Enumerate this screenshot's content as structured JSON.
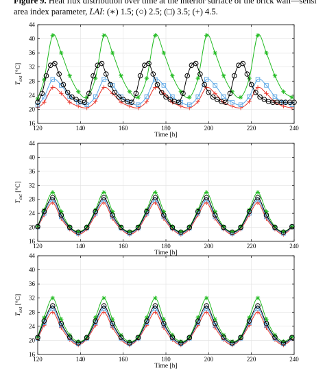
{
  "caption": {
    "figure_label": "Figure 9.",
    "line1_rest": " Heat flux distribution over time at the interior surface of the brick wall—sensi",
    "line2_prefix": "area index parameter, ",
    "line2_param": "LAI",
    "line2_rest": ": (∗) 1.5; (○) 2.5; (□) 3.5; (+) 4.5."
  },
  "colors": {
    "lai_1_5": "#22bb22",
    "lai_2_5": "#000000",
    "lai_3_5": "#5aa6e6",
    "lai_4_5": "#e8352b",
    "grid": "#e2e2e2",
    "axis": "#000000"
  },
  "chart_data": [
    {
      "type": "line",
      "xlabel": "Time [h]",
      "ylabel": "T_ext [°C]",
      "xlim": [
        120,
        240
      ],
      "ylim": [
        16,
        44
      ],
      "xticks": [
        "120",
        "140",
        "160",
        "180",
        "200",
        "220",
        "240"
      ],
      "yticks": [
        "16",
        "20",
        "24",
        "28",
        "32",
        "36",
        "40",
        "44"
      ],
      "grid": true,
      "series": [
        {
          "marker": "asterisk",
          "x": [
            120,
            123,
            127,
            131,
            135,
            139,
            143,
            147,
            151,
            155,
            159,
            163,
            167,
            171,
            175,
            179,
            183,
            187,
            191,
            195,
            199,
            203,
            207,
            211,
            215,
            219,
            223,
            227,
            231,
            235,
            239
          ],
          "values": [
            23.0,
            28.5,
            41.0,
            36.0,
            29.5,
            25.0,
            23.4,
            28.8,
            41.0,
            36.0,
            29.5,
            25.0,
            23.4,
            28.8,
            41.0,
            36.0,
            29.5,
            25.0,
            23.4,
            28.8,
            41.0,
            36.0,
            29.5,
            25.0,
            23.4,
            28.8,
            41.0,
            36.0,
            29.5,
            25.0,
            23.4
          ]
        },
        {
          "marker": "circle",
          "x": [
            120,
            122,
            124,
            126,
            128,
            130,
            132,
            134,
            136,
            138,
            140,
            142,
            144,
            146,
            148,
            150,
            152,
            154,
            156,
            158,
            160,
            162,
            164,
            166,
            168,
            170,
            172,
            174,
            176,
            178,
            180,
            182,
            184,
            186,
            188,
            190,
            192,
            194,
            196,
            198,
            200,
            202,
            204,
            206,
            208,
            210,
            212,
            214,
            216,
            218,
            220,
            222,
            224,
            226,
            228,
            230,
            232,
            234,
            236,
            238,
            240
          ],
          "values": [
            22.0,
            24.5,
            29.5,
            32.5,
            33.0,
            30.0,
            27.0,
            24.8,
            23.5,
            22.8,
            22.2,
            22.0,
            24.5,
            29.5,
            32.5,
            33.0,
            30.0,
            27.0,
            24.8,
            23.5,
            22.8,
            22.2,
            22.0,
            24.5,
            29.5,
            32.5,
            33.0,
            30.0,
            27.0,
            24.8,
            23.5,
            22.8,
            22.2,
            22.0,
            24.5,
            29.5,
            32.5,
            33.0,
            30.0,
            27.0,
            24.8,
            23.5,
            22.8,
            22.2,
            22.0,
            24.5,
            29.5,
            32.5,
            33.0,
            30.0,
            27.0,
            24.8,
            23.5,
            22.8,
            22.2,
            22.0,
            22.0,
            22.0,
            22.0,
            22.0,
            22.0
          ]
        },
        {
          "marker": "square",
          "x": [
            120,
            123,
            127,
            131,
            135,
            139,
            143,
            147,
            151,
            155,
            159,
            163,
            167,
            171,
            175,
            179,
            183,
            187,
            191,
            195,
            199,
            203,
            207,
            211,
            215,
            219,
            223,
            227,
            231,
            235,
            239
          ],
          "values": [
            21.2,
            23.5,
            28.5,
            26.8,
            23.6,
            22.0,
            21.3,
            23.6,
            28.5,
            26.8,
            23.6,
            22.0,
            21.3,
            23.6,
            28.5,
            26.8,
            23.6,
            22.0,
            21.3,
            23.6,
            28.5,
            26.8,
            23.6,
            22.0,
            21.3,
            23.6,
            28.5,
            26.8,
            23.6,
            22.0,
            21.3
          ]
        },
        {
          "marker": "plus",
          "x": [
            120,
            123,
            127,
            131,
            135,
            139,
            143,
            147,
            151,
            155,
            159,
            163,
            167,
            171,
            175,
            179,
            183,
            187,
            191,
            195,
            199,
            203,
            207,
            211,
            215,
            219,
            223,
            227,
            231,
            235,
            239
          ],
          "values": [
            20.5,
            22.0,
            26.2,
            24.5,
            22.0,
            20.9,
            20.4,
            22.2,
            26.2,
            24.5,
            22.0,
            20.9,
            20.4,
            22.2,
            26.2,
            24.5,
            22.0,
            20.9,
            20.4,
            22.2,
            26.2,
            24.5,
            22.0,
            20.9,
            20.4,
            22.2,
            26.2,
            24.5,
            22.0,
            20.9,
            20.4
          ]
        }
      ]
    },
    {
      "type": "line",
      "xlabel": "Time [h]",
      "ylabel": "T_ext [°C]",
      "xlim": [
        120,
        240
      ],
      "ylim": [
        16,
        44
      ],
      "xticks": [
        "120",
        "140",
        "160",
        "180",
        "200",
        "220",
        "240"
      ],
      "yticks": [
        "16",
        "20",
        "24",
        "28",
        "32",
        "36",
        "40",
        "44"
      ],
      "grid": true,
      "series": [
        {
          "marker": "asterisk",
          "x": [
            120,
            123,
            127,
            131,
            135,
            139,
            143,
            147,
            151,
            155,
            159,
            163,
            167,
            171,
            175,
            179,
            183,
            187,
            191,
            195,
            199,
            203,
            207,
            211,
            215,
            219,
            223,
            227,
            231,
            235,
            239
          ],
          "values": [
            20.3,
            25.0,
            30.0,
            24.5,
            20.2,
            18.8,
            20.2,
            25.0,
            30.0,
            24.5,
            20.2,
            18.8,
            20.2,
            25.0,
            30.0,
            24.5,
            20.2,
            18.8,
            20.2,
            25.0,
            30.0,
            24.5,
            20.2,
            18.8,
            20.2,
            25.0,
            30.0,
            24.5,
            20.2,
            18.8,
            20.2
          ]
        },
        {
          "marker": "circle",
          "x": [
            120,
            123,
            127,
            131,
            135,
            139,
            143,
            147,
            151,
            155,
            159,
            163,
            167,
            171,
            175,
            179,
            183,
            187,
            191,
            195,
            199,
            203,
            207,
            211,
            215,
            219,
            223,
            227,
            231,
            235,
            239
          ],
          "values": [
            20.2,
            24.5,
            28.5,
            23.5,
            20.0,
            18.6,
            20.0,
            24.5,
            28.5,
            23.5,
            20.0,
            18.6,
            20.0,
            24.5,
            28.5,
            23.5,
            20.0,
            18.6,
            20.0,
            24.5,
            28.5,
            23.5,
            20.0,
            18.6,
            20.0,
            24.5,
            28.5,
            23.5,
            20.0,
            18.6,
            20.2
          ]
        },
        {
          "marker": "square",
          "x": [
            120,
            123,
            127,
            131,
            135,
            139,
            143,
            147,
            151,
            155,
            159,
            163,
            167,
            171,
            175,
            179,
            183,
            187,
            191,
            195,
            199,
            203,
            207,
            211,
            215,
            219,
            223,
            227,
            231,
            235,
            239
          ],
          "values": [
            20.1,
            24.0,
            27.8,
            23.0,
            19.8,
            18.3,
            19.8,
            24.0,
            27.8,
            23.0,
            19.8,
            18.3,
            19.8,
            24.0,
            27.8,
            23.0,
            19.8,
            18.3,
            19.8,
            24.0,
            27.8,
            23.0,
            19.8,
            18.3,
            19.8,
            24.0,
            27.8,
            23.0,
            19.8,
            18.3,
            20.1
          ]
        },
        {
          "marker": "plus",
          "x": [
            120,
            123,
            127,
            131,
            135,
            139,
            143,
            147,
            151,
            155,
            159,
            163,
            167,
            171,
            175,
            179,
            183,
            187,
            191,
            195,
            199,
            203,
            207,
            211,
            215,
            219,
            223,
            227,
            231,
            235,
            239
          ],
          "values": [
            20.0,
            23.5,
            27.0,
            22.5,
            19.5,
            18.0,
            19.5,
            23.5,
            27.0,
            22.5,
            19.5,
            18.0,
            19.5,
            23.5,
            27.0,
            22.5,
            19.5,
            18.0,
            19.5,
            23.5,
            27.0,
            22.5,
            19.5,
            18.0,
            19.5,
            23.5,
            27.0,
            22.5,
            19.5,
            18.0,
            20.0
          ]
        }
      ]
    },
    {
      "type": "line",
      "xlabel": "Time [h]",
      "ylabel": "T_ext [°C]",
      "xlim": [
        120,
        240
      ],
      "ylim": [
        16,
        44
      ],
      "xticks": [
        "120",
        "140",
        "160",
        "180",
        "200",
        "220",
        "240"
      ],
      "yticks": [
        "16",
        "20",
        "24",
        "28",
        "32",
        "36",
        "40",
        "44"
      ],
      "grid": true,
      "series": [
        {
          "marker": "asterisk",
          "x": [
            120,
            123,
            127,
            131,
            135,
            139,
            143,
            147,
            151,
            155,
            159,
            163,
            167,
            171,
            175,
            179,
            183,
            187,
            191,
            195,
            199,
            203,
            207,
            211,
            215,
            219,
            223,
            227,
            231,
            235,
            239
          ],
          "values": [
            21.0,
            26.5,
            32.0,
            26.0,
            21.5,
            19.7,
            21.0,
            26.5,
            32.0,
            26.0,
            21.5,
            19.7,
            21.0,
            26.5,
            32.0,
            26.0,
            21.5,
            19.7,
            21.0,
            26.5,
            32.0,
            26.0,
            21.5,
            19.7,
            21.0,
            26.5,
            32.0,
            26.0,
            21.5,
            19.7,
            21.0
          ]
        },
        {
          "marker": "circle",
          "x": [
            120,
            123,
            127,
            131,
            135,
            139,
            143,
            147,
            151,
            155,
            159,
            163,
            167,
            171,
            175,
            179,
            183,
            187,
            191,
            195,
            199,
            203,
            207,
            211,
            215,
            219,
            223,
            227,
            231,
            235,
            239
          ],
          "values": [
            20.8,
            25.5,
            29.8,
            24.8,
            20.9,
            19.3,
            20.8,
            25.5,
            29.8,
            24.8,
            20.9,
            19.3,
            20.8,
            25.5,
            29.8,
            24.8,
            20.9,
            19.3,
            20.8,
            25.5,
            29.8,
            24.8,
            20.9,
            19.3,
            20.8,
            25.5,
            29.8,
            24.8,
            20.9,
            19.3,
            20.8
          ]
        },
        {
          "marker": "square",
          "x": [
            120,
            123,
            127,
            131,
            135,
            139,
            143,
            147,
            151,
            155,
            159,
            163,
            167,
            171,
            175,
            179,
            183,
            187,
            191,
            195,
            199,
            203,
            207,
            211,
            215,
            219,
            223,
            227,
            231,
            235,
            239
          ],
          "values": [
            20.6,
            25.0,
            29.0,
            24.3,
            20.6,
            19.0,
            20.6,
            25.0,
            29.0,
            24.3,
            20.6,
            19.0,
            20.6,
            25.0,
            29.0,
            24.3,
            20.6,
            19.0,
            20.6,
            25.0,
            29.0,
            24.3,
            20.6,
            19.0,
            20.6,
            25.0,
            29.0,
            24.3,
            20.6,
            19.0,
            20.6
          ]
        },
        {
          "marker": "plus",
          "x": [
            120,
            123,
            127,
            131,
            135,
            139,
            143,
            147,
            151,
            155,
            159,
            163,
            167,
            171,
            175,
            179,
            183,
            187,
            191,
            195,
            199,
            203,
            207,
            211,
            215,
            219,
            223,
            227,
            231,
            235,
            239
          ],
          "values": [
            20.4,
            24.3,
            28.0,
            23.6,
            20.2,
            18.7,
            20.4,
            24.3,
            28.0,
            23.6,
            20.2,
            18.7,
            20.4,
            24.3,
            28.0,
            23.6,
            20.2,
            18.7,
            20.4,
            24.3,
            28.0,
            23.6,
            20.2,
            18.7,
            20.4,
            24.3,
            28.0,
            23.6,
            20.2,
            18.7,
            20.4
          ]
        }
      ]
    }
  ]
}
